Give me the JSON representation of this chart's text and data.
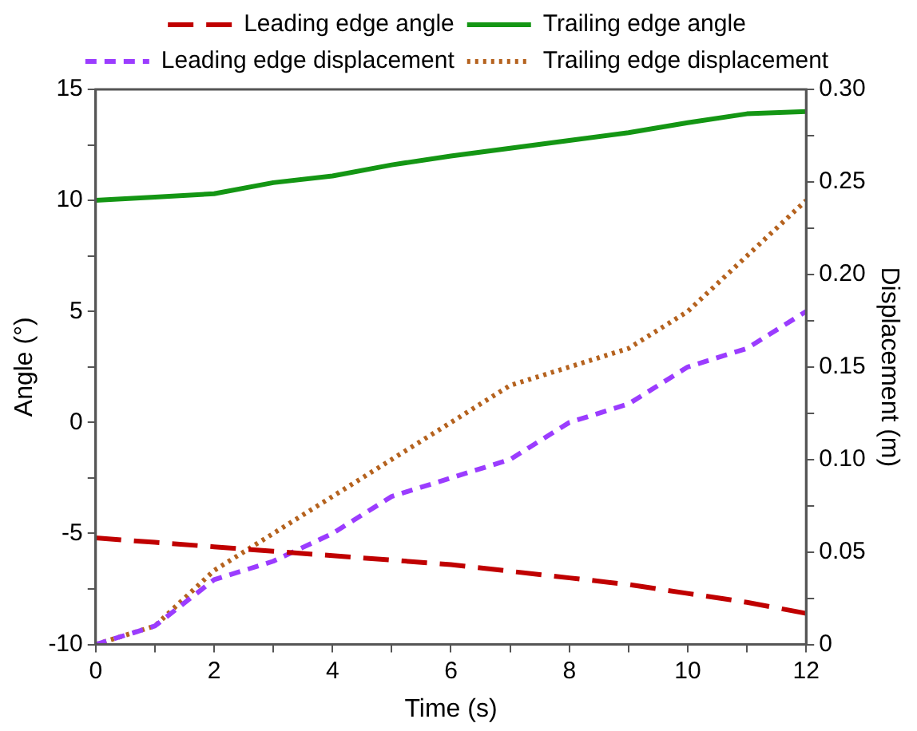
{
  "chart_data": {
    "type": "line",
    "xlabel": "Time (s)",
    "ylabel": "Angle (°)",
    "y2label": "Displacement (m)",
    "x": [
      0,
      1,
      2,
      3,
      4,
      5,
      6,
      7,
      8,
      9,
      10,
      11,
      12
    ],
    "series": [
      {
        "name": "Leading edge angle",
        "color": "#c00000",
        "line_style": "dashed",
        "values": [
          -5.2,
          -5.4,
          -5.6,
          -5.8,
          -6.0,
          -6.2,
          -6.4,
          -6.7,
          -7.0,
          -7.3,
          -7.7,
          -8.1,
          -8.6
        ]
      },
      {
        "name": "Trailing edge angle",
        "color": "#149614",
        "line_style": "solid",
        "values": [
          10,
          10.15,
          10.3,
          10.8,
          11.1,
          11.6,
          12.0,
          12.35,
          12.7,
          13.05,
          13.5,
          13.9,
          14.0
        ]
      },
      {
        "name": "Leading edge displacement",
        "color": "#9b3cff",
        "line_style": "short-dashed",
        "axis": "y2",
        "values": [
          0,
          0.01,
          0.035,
          0.045,
          0.06,
          0.08,
          0.09,
          0.1,
          0.12,
          0.13,
          0.15,
          0.16,
          0.18
        ]
      },
      {
        "name": "Trailing edge displacement",
        "color": "#b5621e",
        "line_style": "dotted",
        "axis": "y2",
        "values": [
          0,
          0.01,
          0.04,
          0.06,
          0.08,
          0.1,
          0.12,
          0.14,
          0.15,
          0.16,
          0.18,
          0.21,
          0.24
        ]
      }
    ],
    "xlim": [
      0,
      12
    ],
    "xticks": [
      0,
      {
        "value": 1,
        "label": null
      },
      2,
      {
        "value": 3,
        "label": null
      },
      4,
      {
        "value": 5,
        "label": null
      },
      6,
      {
        "value": 7,
        "label": null
      },
      8,
      {
        "value": 9,
        "label": null
      },
      10,
      {
        "value": 11,
        "label": null
      },
      12
    ],
    "ylim": [
      -10,
      15
    ],
    "yticks": [
      -10,
      {
        "value": -7.5,
        "label": null
      },
      -5,
      {
        "value": -2.5,
        "label": null
      },
      0,
      {
        "value": 2.5,
        "label": null
      },
      5,
      {
        "value": 7.5,
        "label": null
      },
      10,
      {
        "value": 12.5,
        "label": null
      },
      15
    ],
    "y2lim": [
      0,
      0.3
    ],
    "y2ticks": [
      0,
      {
        "value": 0.025,
        "label": null
      },
      {
        "value": 0.05,
        "label": "0.05"
      },
      {
        "value": 0.075,
        "label": null
      },
      {
        "value": 0.1,
        "label": "0.10"
      },
      {
        "value": 0.125,
        "label": null
      },
      {
        "value": 0.15,
        "label": "0.15"
      },
      {
        "value": 0.175,
        "label": null
      },
      {
        "value": 0.2,
        "label": "0.20"
      },
      {
        "value": 0.225,
        "label": null
      },
      {
        "value": 0.25,
        "label": "0.25"
      },
      {
        "value": 0.275,
        "label": null
      },
      {
        "value": 0.3,
        "label": "0.30"
      }
    ],
    "grid": false,
    "legend": "top",
    "marker": "none"
  }
}
